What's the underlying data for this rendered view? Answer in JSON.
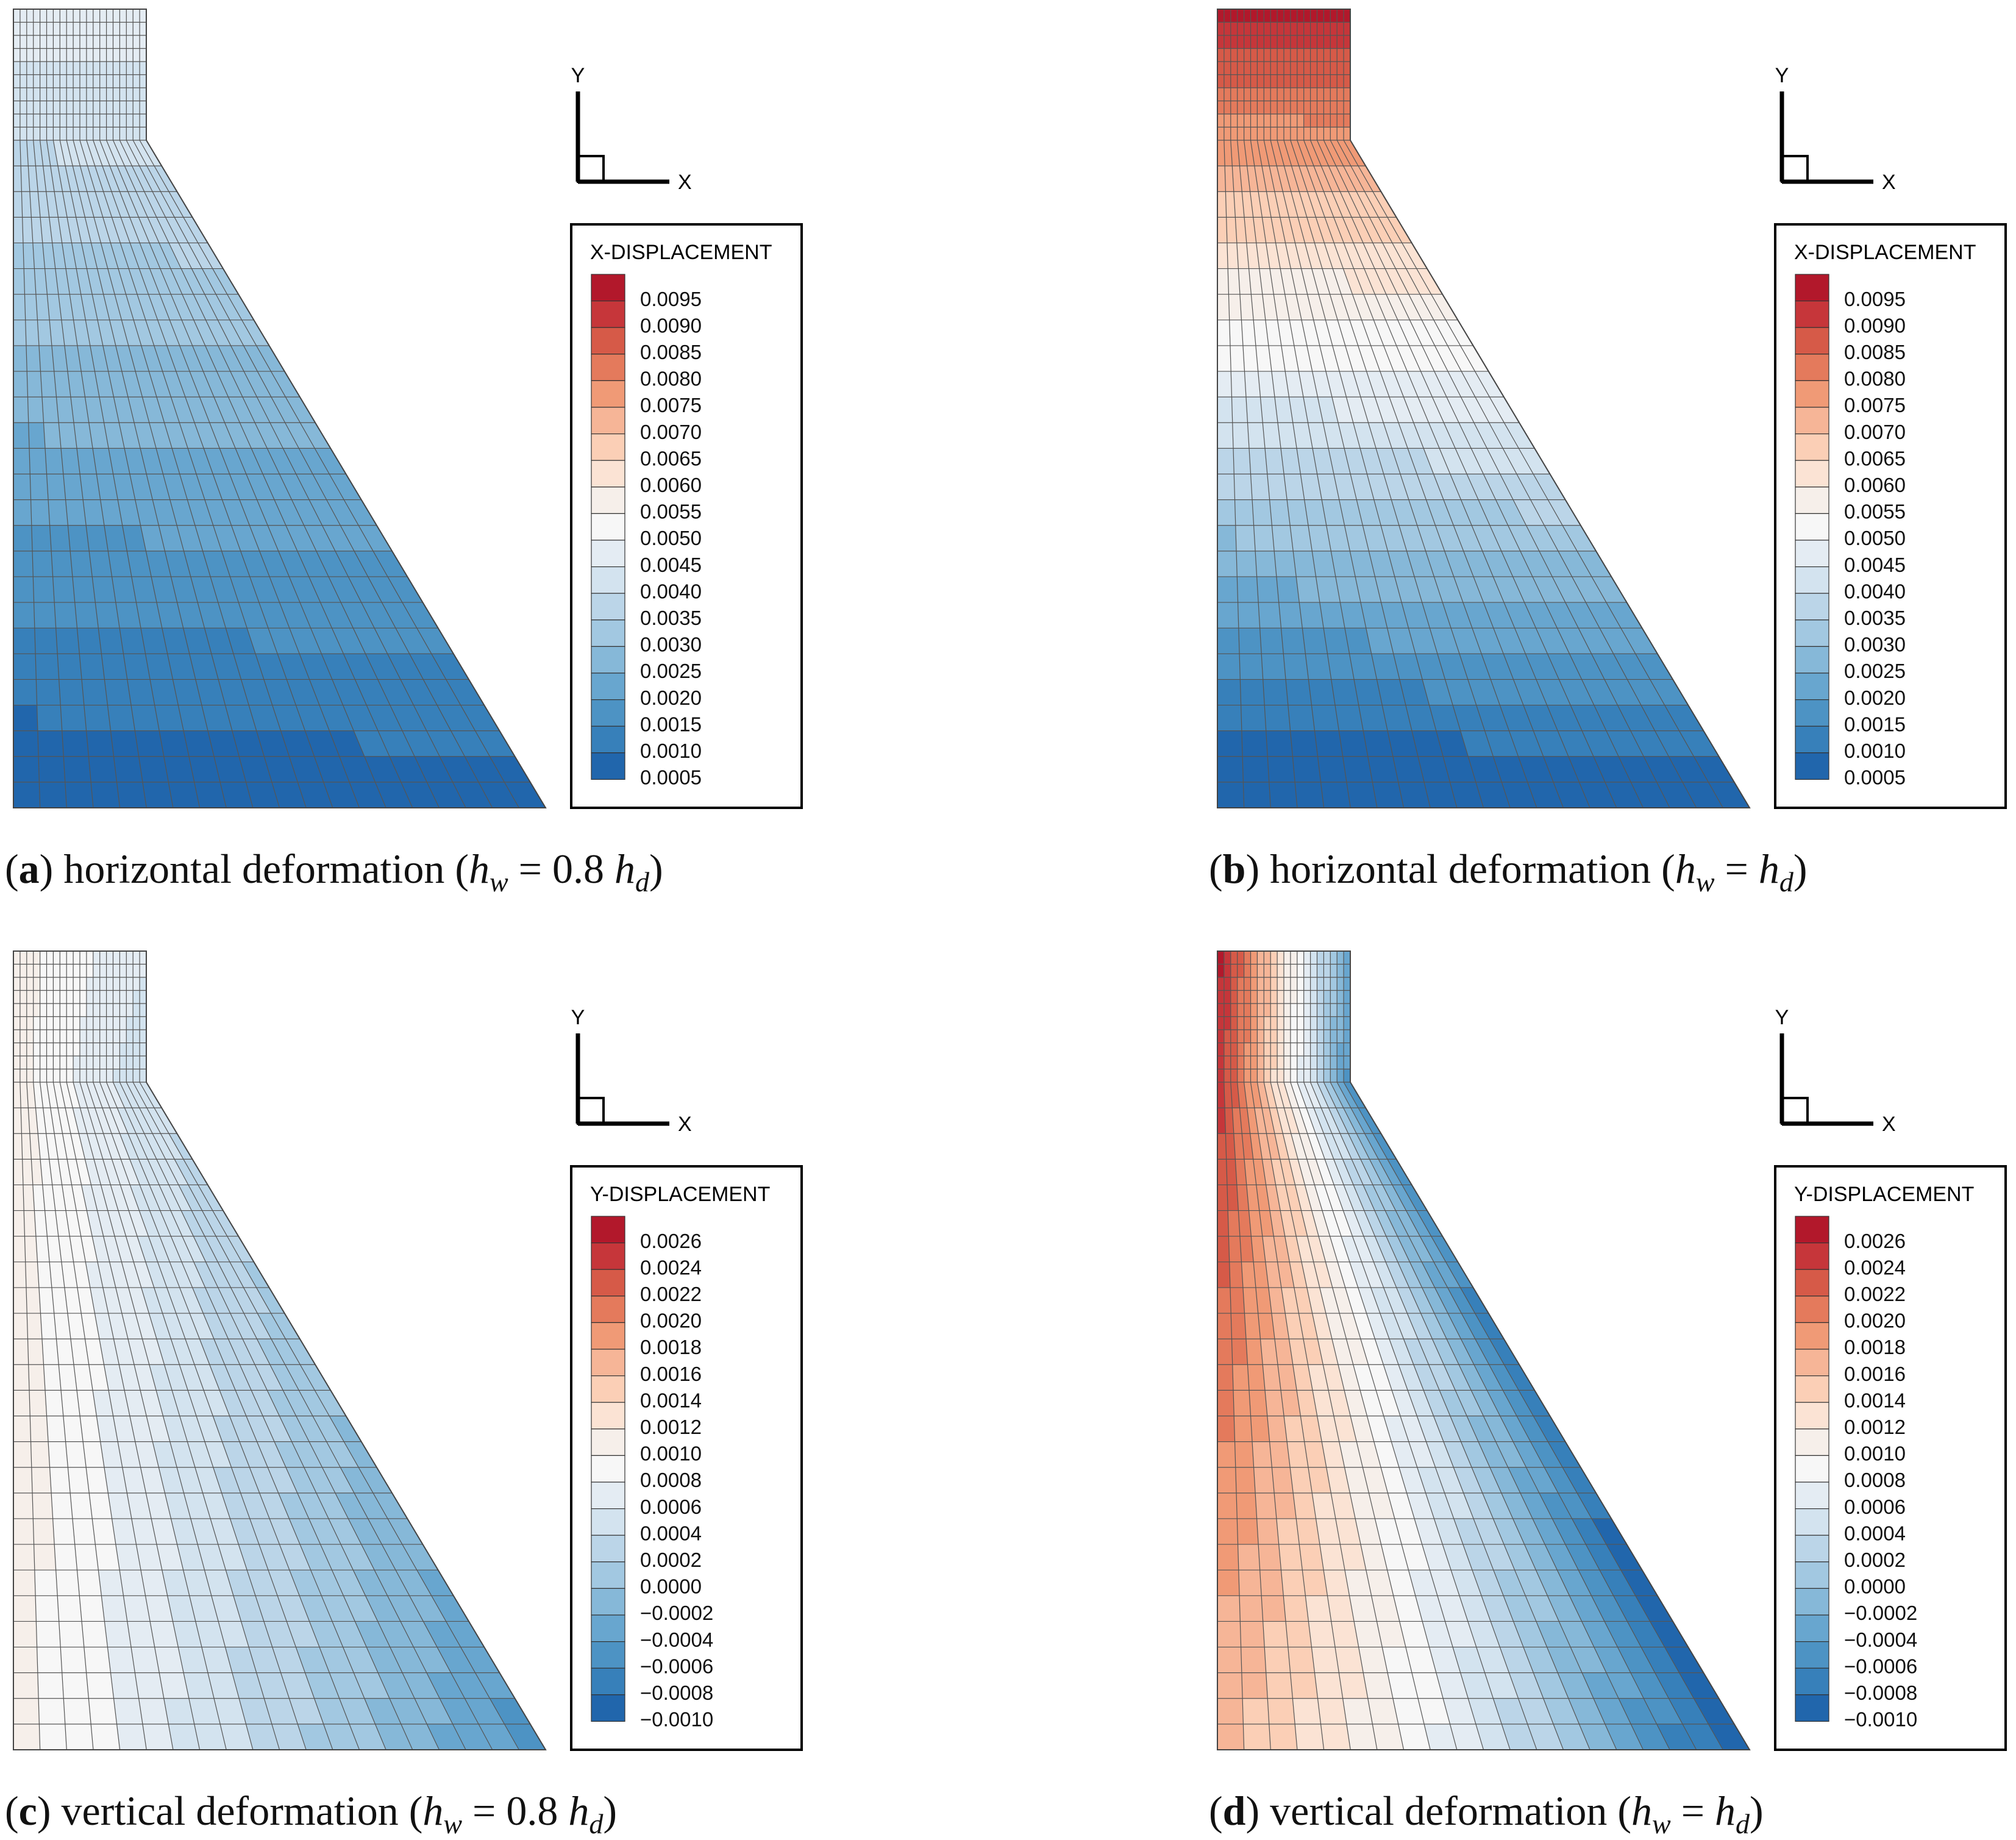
{
  "panels": [
    {
      "id": "a",
      "kind": "x",
      "legend_title": "X-DISPLACEMENT",
      "axis_x": "X",
      "axis_y": "Y",
      "caption": {
        "tag": "a",
        "text": "horizontal deformation",
        "expr": "h_w = 0.8 h_d"
      }
    },
    {
      "id": "b",
      "kind": "x",
      "legend_title": "X-DISPLACEMENT",
      "axis_x": "X",
      "axis_y": "Y",
      "caption": {
        "tag": "b",
        "text": "horizontal deformation",
        "expr": "h_w = h_d"
      }
    },
    {
      "id": "c",
      "kind": "y",
      "legend_title": "Y-DISPLACEMENT",
      "axis_x": "X",
      "axis_y": "Y",
      "caption": {
        "tag": "c",
        "text": "vertical deformation",
        "expr": "h_w = 0.8 h_d"
      }
    },
    {
      "id": "d",
      "kind": "y",
      "legend_title": "Y-DISPLACEMENT",
      "axis_x": "X",
      "axis_y": "Y",
      "caption": {
        "tag": "d",
        "text": "vertical deformation",
        "expr": "h_w = h_d"
      }
    }
  ],
  "chart_data": [
    {
      "type": "heatmap",
      "title": "X-DISPLACEMENT",
      "caption": "(a) horizontal deformation (hw = 0.8 hd)",
      "colorbar_levels": [
        "0.0095",
        "0.0090",
        "0.0085",
        "0.0080",
        "0.0075",
        "0.0070",
        "0.0065",
        "0.0060",
        "0.0055",
        "0.0050",
        "0.0045",
        "0.0040",
        "0.0035",
        "0.0030",
        "0.0025",
        "0.0020",
        "0.0015",
        "0.0010",
        "0.0005"
      ],
      "field_range": [
        0.0005,
        0.0045
      ]
    },
    {
      "type": "heatmap",
      "title": "X-DISPLACEMENT",
      "caption": "(b) horizontal deformation (hw = hd)",
      "colorbar_levels": [
        "0.0095",
        "0.0090",
        "0.0085",
        "0.0080",
        "0.0075",
        "0.0070",
        "0.0065",
        "0.0060",
        "0.0055",
        "0.0050",
        "0.0045",
        "0.0040",
        "0.0035",
        "0.0030",
        "0.0025",
        "0.0020",
        "0.0015",
        "0.0010",
        "0.0005"
      ],
      "field_range": [
        0.0005,
        0.0095
      ]
    },
    {
      "type": "heatmap",
      "title": "Y-DISPLACEMENT",
      "caption": "(c) vertical deformation (hw = 0.8 hd)",
      "colorbar_levels": [
        "0.0026",
        "0.0024",
        "0.0022",
        "0.0020",
        "0.0018",
        "0.0016",
        "0.0014",
        "0.0012",
        "0.0010",
        "0.0008",
        "0.0006",
        "0.0004",
        "0.0002",
        "0.0000",
        "−0.0002",
        "−0.0004",
        "−0.0006",
        "−0.0008",
        "−0.0010"
      ],
      "field_range": [
        -0.0006,
        0.001
      ]
    },
    {
      "type": "heatmap",
      "title": "Y-DISPLACEMENT",
      "caption": "(d) vertical deformation (hw = hd)",
      "colorbar_levels": [
        "0.0026",
        "0.0024",
        "0.0022",
        "0.0020",
        "0.0018",
        "0.0016",
        "0.0014",
        "0.0012",
        "0.0010",
        "0.0008",
        "0.0006",
        "0.0004",
        "0.0002",
        "0.0000",
        "−0.0002",
        "−0.0004",
        "−0.0006",
        "−0.0008",
        "−0.0010"
      ],
      "field_range": [
        -0.001,
        0.0026
      ]
    }
  ],
  "colors": {
    "palette": [
      "#b2182b",
      "#c6363a",
      "#d65a48",
      "#e47a5c",
      "#f09a76",
      "#f6b597",
      "#fbcfb6",
      "#fbe3d4",
      "#f6efea",
      "#f7f7f7",
      "#e4ecf3",
      "#d3e3ef",
      "#bbd5e8",
      "#a2c8e1",
      "#86b8d8",
      "#68a6cf",
      "#4d93c4",
      "#3780ba",
      "#2166ac"
    ],
    "mesh_line": "#555555",
    "frame": "#000000"
  }
}
